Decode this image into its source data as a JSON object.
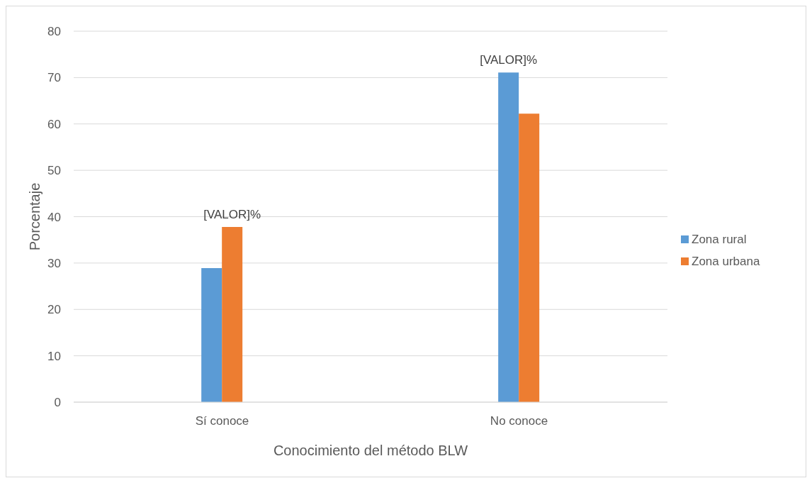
{
  "chart_data": {
    "type": "bar",
    "xlabel": "Conocimiento del método BLW",
    "ylabel": "Porcentaje",
    "categories": [
      "Sí conoce",
      "No conoce"
    ],
    "series": [
      {
        "name": "Zona rural",
        "color": "#5b9bd5",
        "values": [
          28.9,
          71.1
        ],
        "value_labels": [
          null,
          "[VALOR]%"
        ]
      },
      {
        "name": "Zona urbana",
        "color": "#ed7d31",
        "values": [
          37.8,
          62.2
        ],
        "value_labels": [
          "[VALOR]%",
          null
        ]
      }
    ],
    "ylim": [
      0,
      80
    ],
    "yticks": [
      0,
      10,
      20,
      30,
      40,
      50,
      60,
      70,
      80
    ],
    "grid": "y",
    "legend": "right"
  }
}
